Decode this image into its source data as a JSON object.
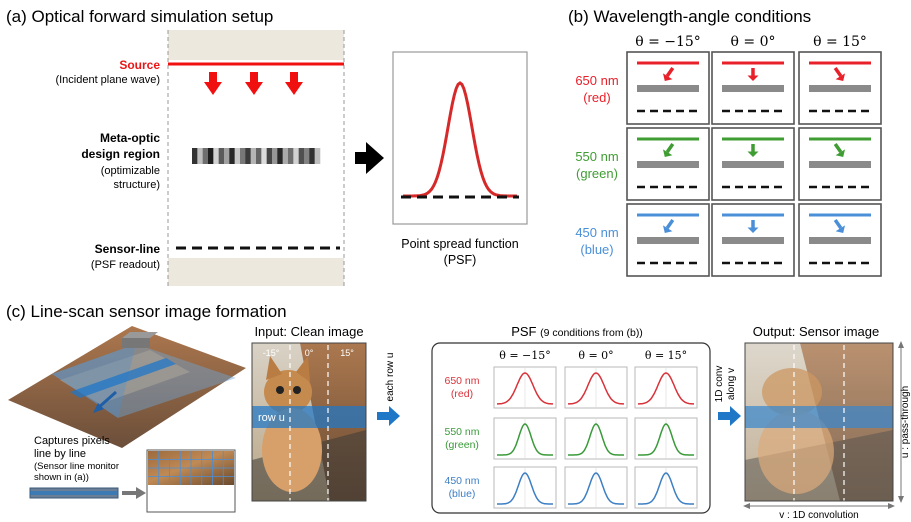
{
  "panel_a": {
    "title": "(a) Optical forward simulation setup",
    "source_label": "Source",
    "source_sub": "(Incident plane wave)",
    "meta_label_1": "Meta-optic",
    "meta_label_2": "design region",
    "meta_sub_1": "(optimizable",
    "meta_sub_2": "structure)",
    "sensor_label": "Sensor-line",
    "sensor_sub": "(PSF readout)",
    "psf_caption_1": "Point spread function",
    "psf_caption_2": "(PSF)"
  },
  "panel_b": {
    "title": "(b) Wavelength-angle conditions",
    "angles": [
      "θ = −15°",
      "θ = 0°",
      "θ = 15°"
    ],
    "rows": [
      {
        "wavelength": "650 nm",
        "name": "(red)",
        "color": "#e8202a"
      },
      {
        "wavelength": "550 nm",
        "name": "(green)",
        "color": "#3f9d33"
      },
      {
        "wavelength": "450 nm",
        "name": "(blue)",
        "color": "#4a8fd8"
      }
    ]
  },
  "panel_c": {
    "title": "(c) Line-scan sensor image formation",
    "scan_caption_1": "Captures pixels",
    "scan_caption_2": "line by line",
    "scan_caption_3": "(Sensor line monitor",
    "scan_caption_4": "shown in (a))",
    "input_title": "Input: Clean image",
    "input_angles": [
      "-15°",
      "0°",
      "15°"
    ],
    "row_label": "row u",
    "each_row": "each row u",
    "psf_title": "PSF",
    "psf_title_sub": "(9 conditions from (b))",
    "psf_angles": [
      "θ = −15°",
      "θ = 0°",
      "θ = 15°"
    ],
    "psf_rows": [
      {
        "wavelength": "650 nm",
        "name": "(red)",
        "color": "#d8323a"
      },
      {
        "wavelength": "550 nm",
        "name": "(green)",
        "color": "#3a9a3a"
      },
      {
        "wavelength": "450 nm",
        "name": "(blue)",
        "color": "#3d7fc4"
      }
    ],
    "conv_1": "1D conv",
    "conv_2": "along v",
    "output_title": "Output: Sensor image",
    "axis_right": "u : pass-through",
    "axis_bottom": "v : 1D convolution"
  },
  "colors": {
    "source_red": "#f01010",
    "psf_curve": "#d62a2a",
    "arrow_blue": "#1f77c8",
    "box_border": "#555555"
  }
}
